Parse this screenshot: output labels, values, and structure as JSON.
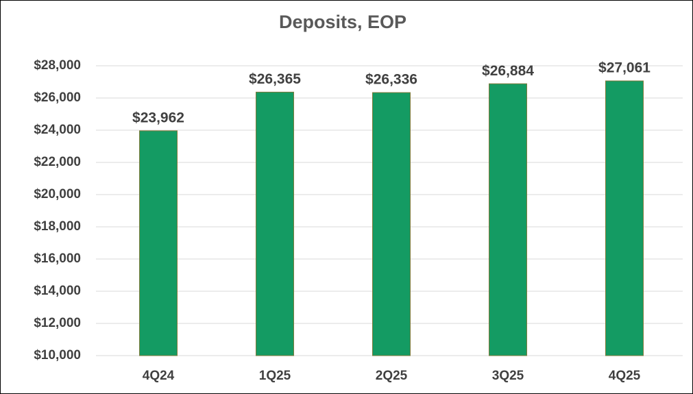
{
  "chart_data": {
    "type": "bar",
    "title": "Deposits, EOP",
    "categories": [
      "4Q24",
      "1Q25",
      "2Q25",
      "3Q25",
      "4Q25"
    ],
    "values": [
      23962,
      26365,
      26336,
      26884,
      27061
    ],
    "value_labels": [
      "$23,962",
      "$26,365",
      "$26,336",
      "$26,884",
      "$27,061"
    ],
    "color": "#149b63",
    "ylim": [
      10000,
      28000
    ],
    "yticks": [
      {
        "value": 10000,
        "label": "$10,000"
      },
      {
        "value": 12000,
        "label": "$12,000"
      },
      {
        "value": 14000,
        "label": "$14,000"
      },
      {
        "value": 16000,
        "label": "$16,000"
      },
      {
        "value": 18000,
        "label": "$18,000"
      },
      {
        "value": 20000,
        "label": "$20,000"
      },
      {
        "value": 22000,
        "label": "$22,000"
      },
      {
        "value": 24000,
        "label": "$24,000"
      },
      {
        "value": 26000,
        "label": "$26,000"
      },
      {
        "value": 28000,
        "label": "$28,000"
      }
    ],
    "grid": true
  }
}
